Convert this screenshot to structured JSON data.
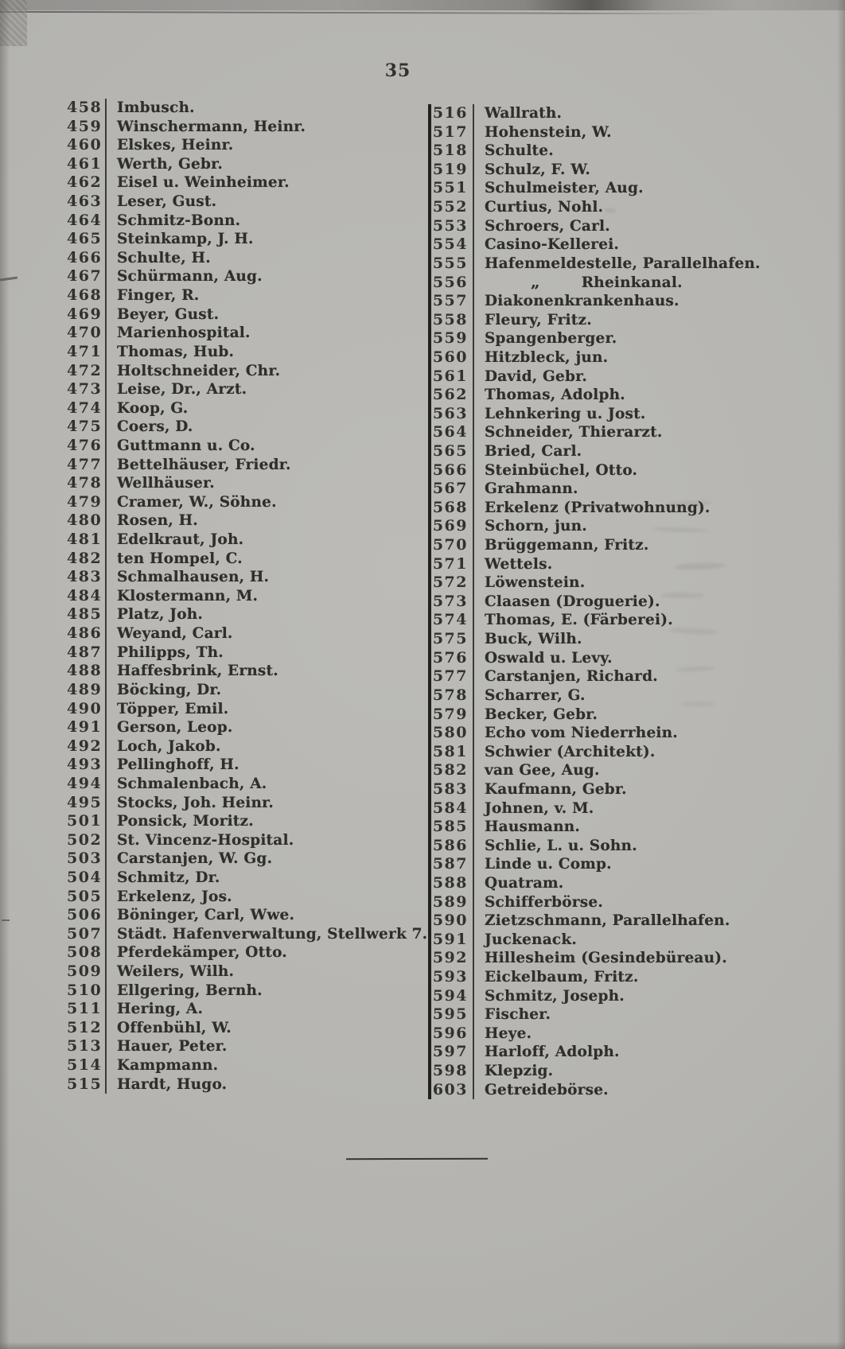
{
  "page": {
    "number": "35"
  },
  "divider": {
    "ditto_mark": "„"
  },
  "directory": {
    "left_column": [
      {
        "num": "458",
        "name": "Imbusch."
      },
      {
        "num": "459",
        "name": "Winschermann, Heinr."
      },
      {
        "num": "460",
        "name": "Elskes, Heinr."
      },
      {
        "num": "461",
        "name": "Werth, Gebr."
      },
      {
        "num": "462",
        "name": "Eisel u. Weinheimer."
      },
      {
        "num": "463",
        "name": "Leser, Gust."
      },
      {
        "num": "464",
        "name": "Schmitz-Bonn."
      },
      {
        "num": "465",
        "name": "Steinkamp, J. H."
      },
      {
        "num": "466",
        "name": "Schulte, H."
      },
      {
        "num": "467",
        "name": "Schürmann, Aug."
      },
      {
        "num": "468",
        "name": "Finger, R."
      },
      {
        "num": "469",
        "name": "Beyer, Gust."
      },
      {
        "num": "470",
        "name": "Marienhospital."
      },
      {
        "num": "471",
        "name": "Thomas, Hub."
      },
      {
        "num": "472",
        "name": "Holtschneider, Chr."
      },
      {
        "num": "473",
        "name": "Leise, Dr., Arzt."
      },
      {
        "num": "474",
        "name": "Koop, G."
      },
      {
        "num": "475",
        "name": "Coers, D."
      },
      {
        "num": "476",
        "name": "Guttmann u. Co."
      },
      {
        "num": "477",
        "name": "Bettelhäuser, Friedr."
      },
      {
        "num": "478",
        "name": "Wellhäuser."
      },
      {
        "num": "479",
        "name": "Cramer, W., Söhne."
      },
      {
        "num": "480",
        "name": "Rosen, H."
      },
      {
        "num": "481",
        "name": "Edelkraut, Joh."
      },
      {
        "num": "482",
        "name": "ten Hompel, C."
      },
      {
        "num": "483",
        "name": "Schmalhausen, H."
      },
      {
        "num": "484",
        "name": "Klostermann, M."
      },
      {
        "num": "485",
        "name": "Platz, Joh."
      },
      {
        "num": "486",
        "name": "Weyand, Carl."
      },
      {
        "num": "487",
        "name": "Philipps, Th."
      },
      {
        "num": "488",
        "name": "Haffesbrink, Ernst."
      },
      {
        "num": "489",
        "name": "Böcking, Dr."
      },
      {
        "num": "490",
        "name": "Töpper, Emil."
      },
      {
        "num": "491",
        "name": "Gerson, Leop."
      },
      {
        "num": "492",
        "name": "Loch, Jakob."
      },
      {
        "num": "493",
        "name": "Pellinghoff, H."
      },
      {
        "num": "494",
        "name": "Schmalenbach, A."
      },
      {
        "num": "495",
        "name": "Stocks, Joh. Heinr."
      },
      {
        "num": "501",
        "name": "Ponsick, Moritz."
      },
      {
        "num": "502",
        "name": "St. Vincenz-Hospital."
      },
      {
        "num": "503",
        "name": "Carstanjen, W. Gg."
      },
      {
        "num": "504",
        "name": "Schmitz, Dr."
      },
      {
        "num": "505",
        "name": "Erkelenz, Jos."
      },
      {
        "num": "506",
        "name": "Böninger, Carl, Wwe."
      },
      {
        "num": "507",
        "name": "Städt. Hafenverwaltung, Stellwerk 7."
      },
      {
        "num": "508",
        "name": "Pferdekämper, Otto."
      },
      {
        "num": "509",
        "name": "Weilers, Wilh."
      },
      {
        "num": "510",
        "name": "Ellgering, Bernh."
      },
      {
        "num": "511",
        "name": "Hering, A."
      },
      {
        "num": "512",
        "name": "Offenbühl, W."
      },
      {
        "num": "513",
        "name": "Hauer, Peter."
      },
      {
        "num": "514",
        "name": "Kampmann."
      },
      {
        "num": "515",
        "name": "Hardt, Hugo."
      }
    ],
    "right_column": [
      {
        "num": "516",
        "name": "Wallrath."
      },
      {
        "num": "517",
        "name": "Hohenstein, W."
      },
      {
        "num": "518",
        "name": "Schulte."
      },
      {
        "num": "519",
        "name": "Schulz, F. W."
      },
      {
        "num": "551",
        "name": "Schulmeister, Aug."
      },
      {
        "num": "552",
        "name": "Curtius, Nohl."
      },
      {
        "num": "553",
        "name": "Schroers, Carl."
      },
      {
        "num": "554",
        "name": "Casino-Kellerei."
      },
      {
        "num": "555",
        "name": "Hafenmeldestelle, Parallelhafen."
      },
      {
        "num": "556",
        "name": "Rheinkanal.",
        "ditto": true
      },
      {
        "num": "557",
        "name": "Diakonenkrankenhaus."
      },
      {
        "num": "558",
        "name": "Fleury, Fritz."
      },
      {
        "num": "559",
        "name": "Spangenberger."
      },
      {
        "num": "560",
        "name": "Hitzbleck, jun."
      },
      {
        "num": "561",
        "name": "David, Gebr."
      },
      {
        "num": "562",
        "name": "Thomas, Adolph."
      },
      {
        "num": "563",
        "name": "Lehnkering u. Jost."
      },
      {
        "num": "564",
        "name": "Schneider, Thierarzt."
      },
      {
        "num": "565",
        "name": "Bried, Carl."
      },
      {
        "num": "566",
        "name": "Steinbüchel, Otto."
      },
      {
        "num": "567",
        "name": "Grahmann."
      },
      {
        "num": "568",
        "name": "Erkelenz (Privatwohnung)."
      },
      {
        "num": "569",
        "name": "Schorn, jun."
      },
      {
        "num": "570",
        "name": "Brüggemann, Fritz."
      },
      {
        "num": "571",
        "name": "Wettels."
      },
      {
        "num": "572",
        "name": "Löwenstein."
      },
      {
        "num": "573",
        "name": "Claasen (Droguerie)."
      },
      {
        "num": "574",
        "name": "Thomas, E. (Färberei)."
      },
      {
        "num": "575",
        "name": "Buck, Wilh."
      },
      {
        "num": "576",
        "name": "Oswald u. Levy."
      },
      {
        "num": "577",
        "name": "Carstanjen, Richard."
      },
      {
        "num": "578",
        "name": "Scharrer, G."
      },
      {
        "num": "579",
        "name": "Becker, Gebr."
      },
      {
        "num": "580",
        "name": "Echo vom Niederrhein."
      },
      {
        "num": "581",
        "name": "Schwier (Architekt)."
      },
      {
        "num": "582",
        "name": "van Gee, Aug."
      },
      {
        "num": "583",
        "name": "Kaufmann, Gebr."
      },
      {
        "num": "584",
        "name": "Johnen, v. M."
      },
      {
        "num": "585",
        "name": "Hausmann."
      },
      {
        "num": "586",
        "name": "Schlie, L. u. Sohn."
      },
      {
        "num": "587",
        "name": "Linde u. Comp."
      },
      {
        "num": "588",
        "name": "Quatram."
      },
      {
        "num": "589",
        "name": "Schifferbörse."
      },
      {
        "num": "590",
        "name": "Zietzschmann, Parallelhafen."
      },
      {
        "num": "591",
        "name": "Juckenack."
      },
      {
        "num": "592",
        "name": "Hillesheim (Gesindebüreau)."
      },
      {
        "num": "593",
        "name": "Eickelbaum, Fritz."
      },
      {
        "num": "594",
        "name": "Schmitz, Joseph."
      },
      {
        "num": "595",
        "name": "Fischer."
      },
      {
        "num": "596",
        "name": "Heye."
      },
      {
        "num": "597",
        "name": "Harloff, Adolph."
      },
      {
        "num": "598",
        "name": "Klepzig."
      },
      {
        "num": "603",
        "name": "Getreidebörse."
      }
    ]
  }
}
